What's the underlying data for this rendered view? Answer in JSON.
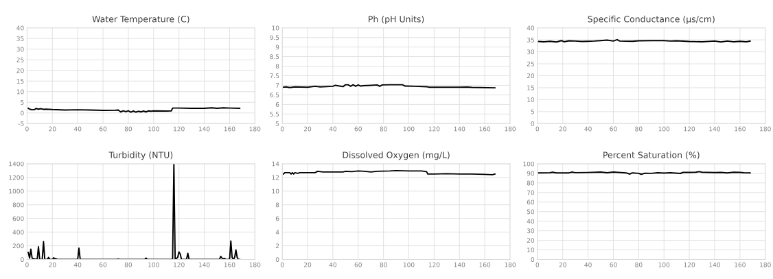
{
  "chart_data": [
    {
      "type": "line",
      "title": "Water Temperature (C)",
      "color": "#000000",
      "grid": true,
      "xlim": [
        0,
        180
      ],
      "xticks": [
        0,
        20,
        40,
        60,
        80,
        100,
        120,
        140,
        160,
        180
      ],
      "ylim": [
        -5,
        40
      ],
      "yticks": [
        -5,
        0,
        5,
        10,
        15,
        20,
        25,
        30,
        35,
        40
      ],
      "x": [
        1,
        2,
        4,
        6,
        7,
        9,
        11,
        13,
        15,
        20,
        30,
        40,
        50,
        60,
        70,
        72,
        74,
        76,
        78,
        80,
        82,
        84,
        86,
        88,
        90,
        92,
        94,
        96,
        98,
        100,
        110,
        114,
        115,
        120,
        130,
        140,
        146,
        150,
        155,
        160,
        168
      ],
      "values": [
        2.2,
        1.8,
        1.5,
        1.6,
        2.1,
        1.8,
        2.0,
        1.7,
        1.8,
        1.6,
        1.4,
        1.5,
        1.4,
        1.2,
        1.3,
        1.4,
        0.5,
        1.0,
        0.6,
        1.0,
        0.4,
        0.9,
        0.4,
        0.8,
        0.5,
        0.9,
        0.5,
        1.0,
        0.8,
        1.0,
        0.9,
        1.0,
        2.3,
        2.3,
        2.2,
        2.2,
        2.4,
        2.2,
        2.4,
        2.3,
        2.2
      ]
    },
    {
      "type": "line",
      "title": "Ph (pH Units)",
      "color": "#000000",
      "grid": true,
      "xlim": [
        0,
        180
      ],
      "xticks": [
        0,
        20,
        40,
        60,
        80,
        100,
        120,
        140,
        160,
        180
      ],
      "ylim": [
        5,
        10
      ],
      "yticks": [
        5,
        5.5,
        6,
        6.5,
        7,
        7.5,
        8,
        8.5,
        9,
        9.5,
        10
      ],
      "x": [
        1,
        3,
        6,
        10,
        20,
        26,
        30,
        40,
        42,
        48,
        50,
        52,
        54,
        56,
        58,
        60,
        62,
        64,
        70,
        75,
        77,
        79,
        85,
        95,
        97,
        105,
        114,
        116,
        130,
        140,
        146,
        150,
        168
      ],
      "values": [
        6.9,
        6.92,
        6.88,
        6.92,
        6.9,
        6.95,
        6.92,
        6.95,
        7.0,
        6.93,
        7.03,
        7.03,
        6.95,
        7.03,
        6.95,
        7.02,
        6.96,
        6.98,
        7.0,
        7.02,
        6.95,
        7.02,
        7.03,
        7.03,
        6.96,
        6.95,
        6.93,
        6.9,
        6.9,
        6.9,
        6.91,
        6.89,
        6.87
      ]
    },
    {
      "type": "line",
      "title": "Specific Conductance (μs/cm)",
      "color": "#000000",
      "grid": true,
      "xlim": [
        0,
        180
      ],
      "xticks": [
        0,
        20,
        40,
        60,
        80,
        100,
        120,
        140,
        160,
        180
      ],
      "ylim": [
        0,
        40
      ],
      "yticks": [
        0,
        5,
        10,
        15,
        20,
        25,
        30,
        35,
        40
      ],
      "x": [
        1,
        5,
        10,
        15,
        19,
        21,
        25,
        30,
        35,
        40,
        45,
        50,
        55,
        60,
        63,
        65,
        75,
        80,
        90,
        100,
        105,
        110,
        120,
        130,
        140,
        145,
        150,
        155,
        160,
        165,
        168
      ],
      "values": [
        34.3,
        34.2,
        34.4,
        34.1,
        34.7,
        34.2,
        34.6,
        34.5,
        34.3,
        34.4,
        34.5,
        34.7,
        34.9,
        34.5,
        35.1,
        34.5,
        34.4,
        34.6,
        34.7,
        34.7,
        34.5,
        34.6,
        34.3,
        34.2,
        34.5,
        34.1,
        34.5,
        34.2,
        34.4,
        34.2,
        34.5
      ]
    },
    {
      "type": "line",
      "title": "Turbidity (NTU)",
      "color": "#000000",
      "grid": true,
      "xlim": [
        0,
        180
      ],
      "xticks": [
        0,
        20,
        40,
        60,
        80,
        100,
        120,
        140,
        160,
        180
      ],
      "ylim": [
        0,
        1400
      ],
      "yticks": [
        0,
        200,
        400,
        600,
        800,
        1000,
        1200,
        1400
      ],
      "x": [
        1,
        2,
        3,
        4,
        5,
        8,
        9,
        10,
        12,
        13,
        14,
        16,
        17,
        18,
        20,
        21,
        22,
        23,
        24,
        40,
        41,
        42,
        71,
        72,
        73,
        93,
        94,
        95,
        115,
        116,
        117,
        119,
        120,
        121,
        122,
        126,
        127,
        128,
        152,
        153,
        154,
        155,
        156,
        157,
        160,
        161,
        162,
        163,
        164,
        165,
        166,
        167,
        168
      ],
      "values": [
        100,
        20,
        150,
        20,
        10,
        0,
        185,
        0,
        0,
        260,
        0,
        0,
        30,
        0,
        0,
        25,
        10,
        10,
        0,
        0,
        165,
        0,
        0,
        5,
        0,
        0,
        20,
        0,
        0,
        1400,
        0,
        30,
        110,
        80,
        0,
        0,
        90,
        0,
        0,
        45,
        20,
        10,
        15,
        0,
        0,
        270,
        30,
        0,
        30,
        140,
        30,
        0,
        0
      ]
    },
    {
      "type": "line",
      "title": "Dissolved Oxygen (mg/L)",
      "color": "#000000",
      "grid": true,
      "xlim": [
        0,
        180
      ],
      "xticks": [
        0,
        20,
        40,
        60,
        80,
        100,
        120,
        140,
        160,
        180
      ],
      "ylim": [
        0,
        14
      ],
      "yticks": [
        0,
        2,
        4,
        6,
        8,
        10,
        12,
        14
      ],
      "x": [
        1,
        2,
        6,
        7,
        8,
        9,
        10,
        12,
        14,
        20,
        26,
        28,
        32,
        40,
        48,
        50,
        55,
        60,
        65,
        70,
        75,
        85,
        90,
        100,
        110,
        114,
        115,
        120,
        130,
        140,
        150,
        160,
        166,
        168
      ],
      "values": [
        12.5,
        12.7,
        12.7,
        12.5,
        12.7,
        12.5,
        12.7,
        12.6,
        12.7,
        12.7,
        12.7,
        12.9,
        12.8,
        12.8,
        12.8,
        12.9,
        12.85,
        12.95,
        12.9,
        12.8,
        12.9,
        12.95,
        13.0,
        12.95,
        12.95,
        12.85,
        12.5,
        12.5,
        12.55,
        12.5,
        12.5,
        12.45,
        12.4,
        12.5
      ]
    },
    {
      "type": "line",
      "title": "Percent Saturation (%)",
      "color": "#000000",
      "grid": true,
      "xlim": [
        0,
        180
      ],
      "xticks": [
        0,
        20,
        40,
        60,
        80,
        100,
        120,
        140,
        160,
        180
      ],
      "ylim": [
        0,
        100
      ],
      "yticks": [
        0,
        10,
        20,
        30,
        40,
        50,
        60,
        70,
        80,
        90,
        100
      ],
      "x": [
        1,
        10,
        12,
        15,
        25,
        27,
        30,
        40,
        50,
        55,
        60,
        70,
        73,
        75,
        80,
        82,
        85,
        90,
        95,
        100,
        105,
        113,
        115,
        120,
        125,
        128,
        130,
        140,
        145,
        150,
        155,
        160,
        163,
        168
      ],
      "values": [
        90.5,
        90.6,
        91.2,
        90.4,
        90.5,
        91.3,
        90.7,
        90.9,
        91.3,
        90.6,
        91.3,
        90.5,
        89.2,
        90.5,
        90.0,
        89.0,
        90.2,
        90.0,
        90.6,
        90.3,
        90.6,
        89.9,
        91.0,
        91.0,
        91.2,
        91.8,
        91.2,
        90.8,
        91.0,
        90.5,
        91.2,
        91.0,
        90.6,
        90.5
      ]
    }
  ]
}
